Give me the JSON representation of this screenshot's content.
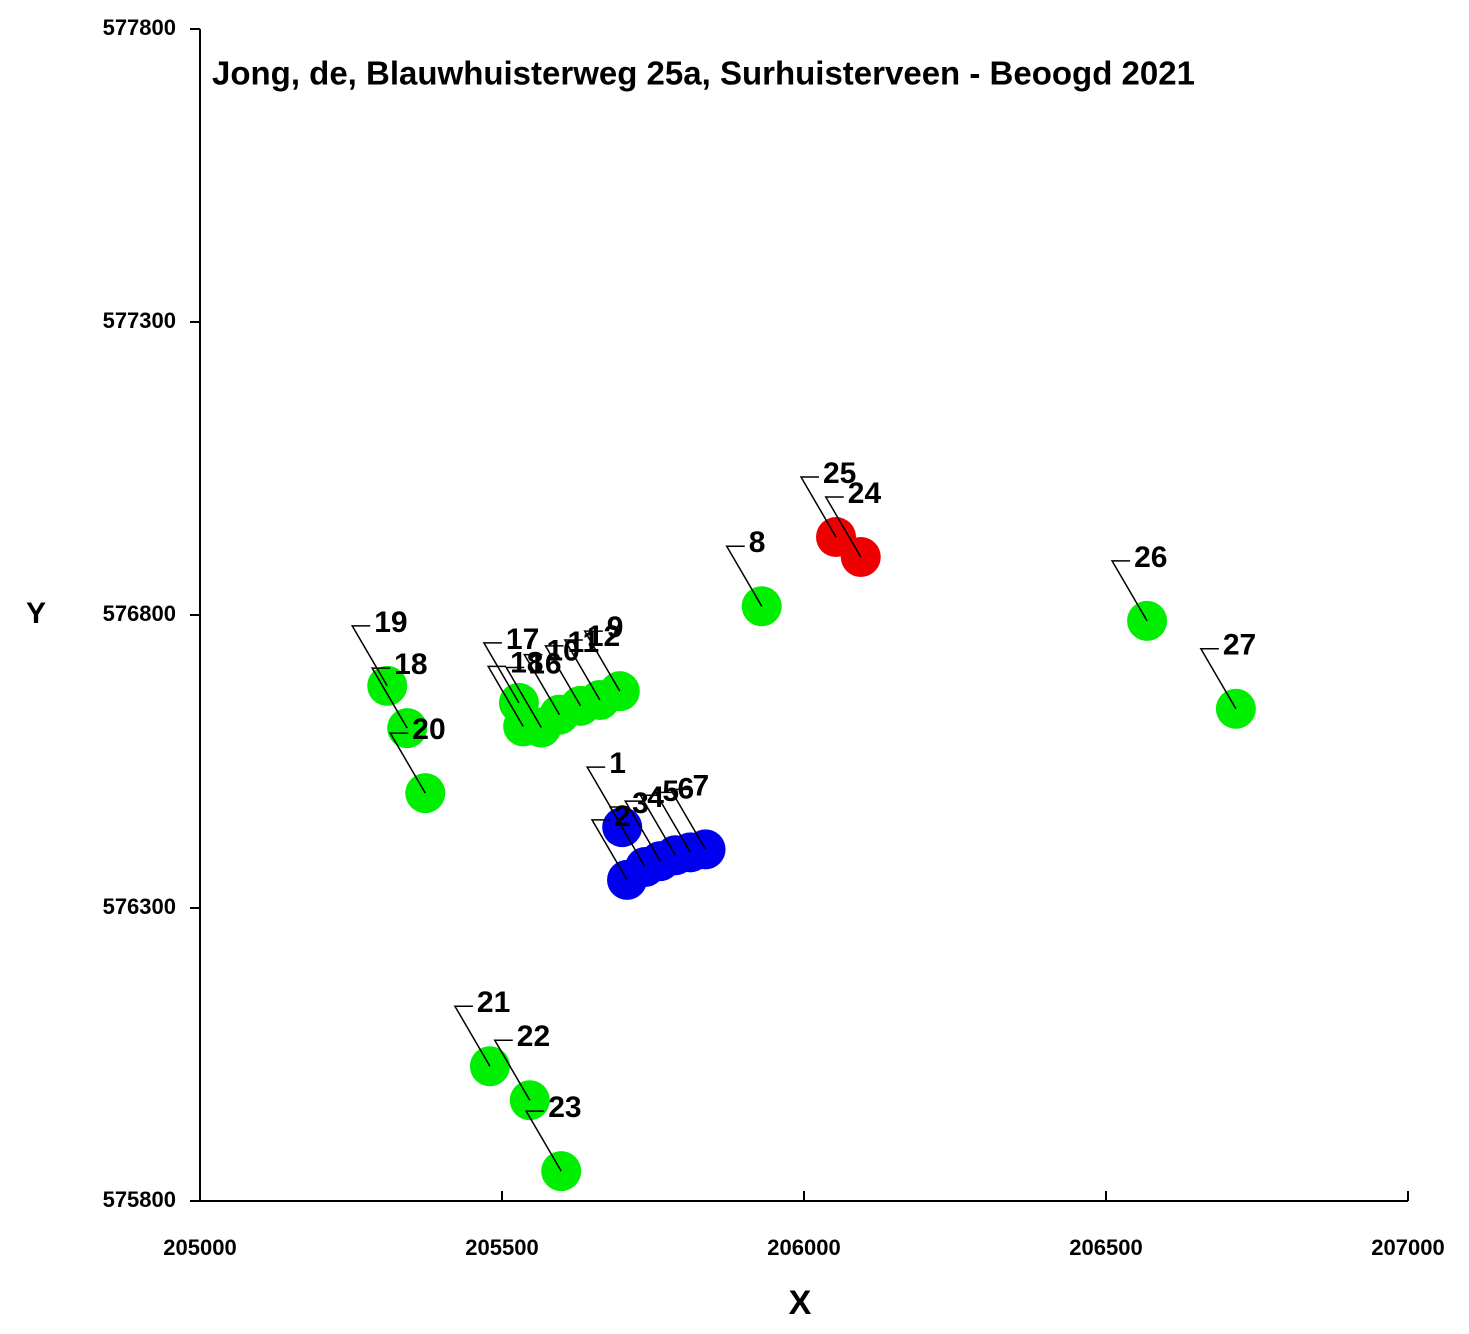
{
  "chart_data": {
    "type": "scatter",
    "title": "Jong, de, Blauwhuisterweg 25a, Surhuisterveen - Beoogd 2021",
    "xlabel": "X",
    "ylabel": "Y",
    "xlim": [
      205000,
      207000
    ],
    "xticks": [
      205000,
      205500,
      206000,
      206500,
      207000
    ],
    "ylim": [
      575800,
      577800
    ],
    "yticks": [
      575800,
      576300,
      576800,
      577300,
      577800
    ],
    "series": [
      {
        "color": "#00ee00",
        "x": [
          205930,
          206568,
          206715,
          205310,
          205343,
          205373,
          205528,
          205535,
          205565,
          205595,
          205630,
          205662,
          205695,
          205480,
          205546,
          205598
        ],
        "values": [
          576815,
          576790,
          576640,
          576679,
          576607,
          576496,
          576650,
          576610,
          576608,
          576630,
          576645,
          576655,
          576670,
          576030,
          575972,
          575851
        ],
        "labels": [
          "8",
          "26",
          "27",
          "19",
          "18",
          "20",
          "17",
          "18",
          "16",
          "10",
          "11",
          "12",
          "9",
          "21",
          "22",
          "23"
        ]
      },
      {
        "color": "#0000ee",
        "x": [
          205699,
          205707,
          205737,
          205762,
          205787,
          205812,
          205837
        ],
        "values": [
          576438,
          576348,
          576370,
          576380,
          576390,
          576395,
          576400
        ],
        "labels": [
          "1",
          "2",
          "3",
          "4",
          "5",
          "6",
          "7"
        ]
      },
      {
        "color": "#ee0000",
        "x": [
          206053,
          206094
        ],
        "values": [
          576933,
          576899
        ],
        "labels": [
          "25",
          "24"
        ]
      }
    ]
  }
}
